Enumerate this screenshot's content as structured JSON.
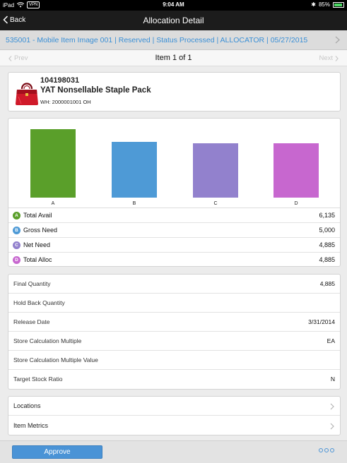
{
  "status_bar": {
    "device": "iPad",
    "vpn": "VPN",
    "time": "9:04 AM",
    "battery": "85%"
  },
  "nav": {
    "back_label": "Back",
    "title": "Allocation Detail"
  },
  "header": {
    "text": "535001 - Mobile Item Image 001 | Reserved | Status Processed | ALLOCATOR | 05/27/2015"
  },
  "pager": {
    "prev_label": "Prev",
    "count_label": "Item 1 of 1",
    "next_label": "Next"
  },
  "item": {
    "id": "104198031",
    "name": "YAT Nonsellable Staple Pack",
    "warehouse": "WH: 2000001001 OH",
    "thumb_icon": "red-handbag-icon"
  },
  "chart_data": {
    "type": "bar",
    "categories": [
      "A",
      "B",
      "C",
      "D"
    ],
    "values": [
      6135,
      5000,
      4885,
      4885
    ],
    "colors": [
      "#5a9f2a",
      "#4e9ad6",
      "#9281cd",
      "#c767cf"
    ],
    "ylim": [
      0,
      6135
    ],
    "grid": false
  },
  "legend": [
    {
      "letter": "A",
      "name": "Total Avail",
      "value": "6,135",
      "color": "#5a9f2a"
    },
    {
      "letter": "B",
      "name": "Gross Need",
      "value": "5,000",
      "color": "#4e9ad6"
    },
    {
      "letter": "C",
      "name": "Net Need",
      "value": "4,885",
      "color": "#9281cd"
    },
    {
      "letter": "D",
      "name": "Total Alloc",
      "value": "4,885",
      "color": "#c767cf"
    }
  ],
  "details": [
    {
      "label": "Final Quantity",
      "value": "4,885"
    },
    {
      "label": "Hold Back Quantity",
      "value": ""
    },
    {
      "label": "Release Date",
      "value": "3/31/2014"
    },
    {
      "label": "Store Calculation Multiple",
      "value": "EA"
    },
    {
      "label": "Store Calculation Multiple Value",
      "value": ""
    },
    {
      "label": "Target Stock Ratio",
      "value": "N"
    }
  ],
  "links": [
    {
      "label": "Locations"
    },
    {
      "label": "Item Metrics"
    }
  ],
  "footer": {
    "approve_label": "Approve",
    "accent": "#4a93d6"
  }
}
